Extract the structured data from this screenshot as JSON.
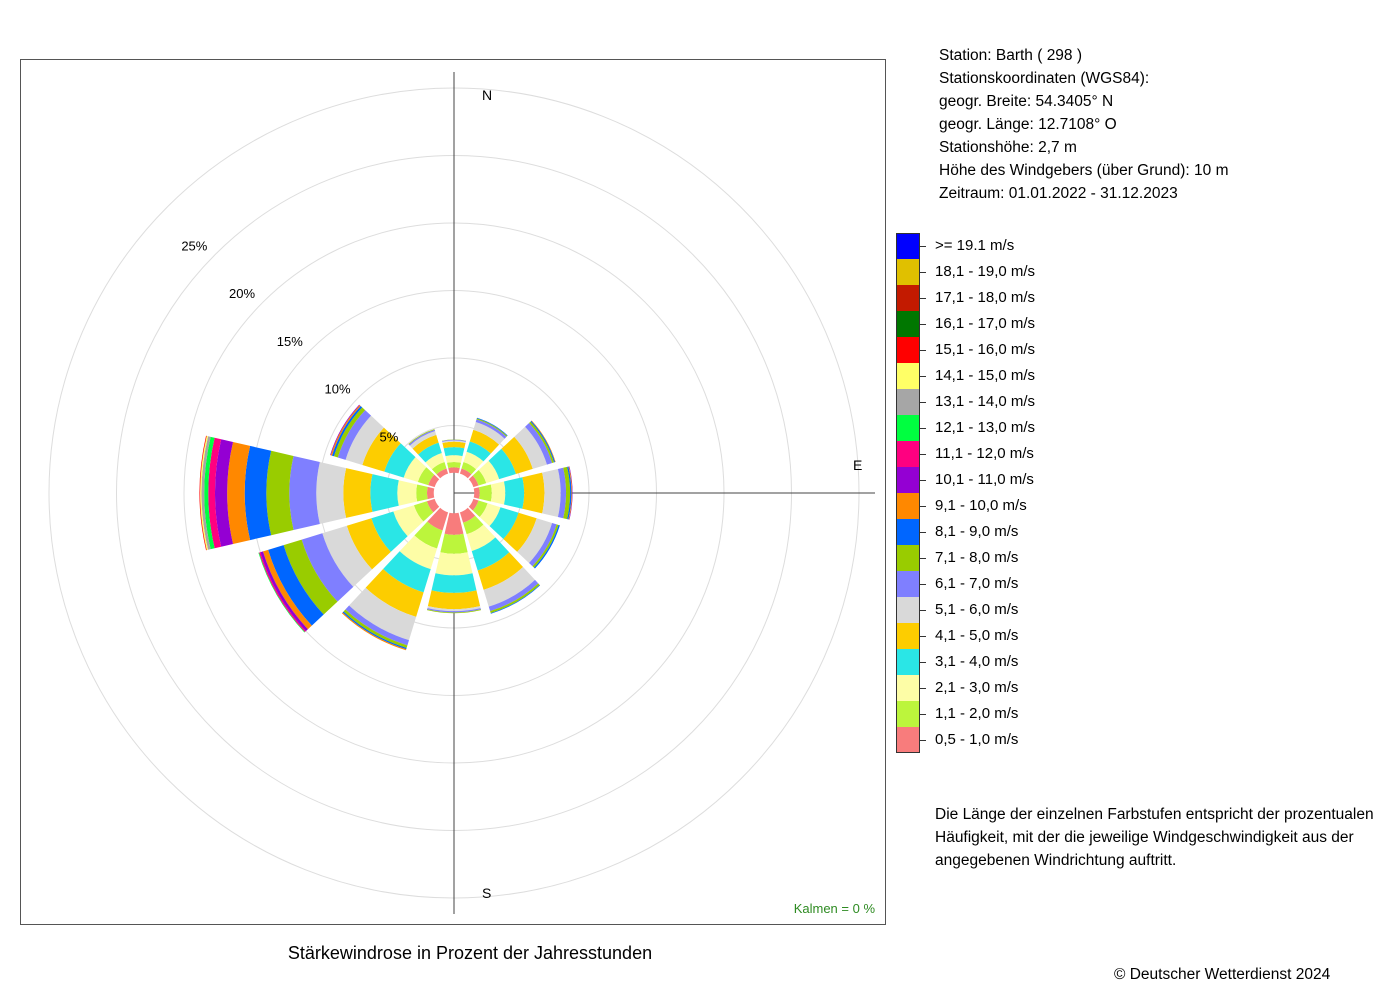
{
  "station": {
    "station_line": "Station:  Barth  ( 298 )",
    "coords_heading": "Stationskoordinaten (WGS84):",
    "latitude": "geogr. Breite: 54.3405° N",
    "longitude": "geogr. Länge: 12.7108° O",
    "elevation": "Stationshöhe: 2,7 m",
    "anemometer_height": "Höhe des Windgebers (über Grund): 10 m",
    "period": "Zeitraum: 01.01.2022 - 31.12.2023"
  },
  "explanation": "Die Länge der einzelnen Farbstufen entspricht der prozentualen Häufigkeit, mit der die jeweilige Windgeschwindigkeit aus der angegebenen Windrichtung auftritt.",
  "calm": "Kalmen  =  0 %",
  "copyright": "© Deutscher Wetterdienst  2024",
  "chart_data": {
    "type": "polar-stacked-bar",
    "title": "Stärkewindrose in Prozent der Jahresstunden",
    "cardinal_labels": [
      "N",
      "E",
      "S"
    ],
    "radial_unit": "%",
    "radial_ticks": [
      5,
      10,
      15,
      20,
      25
    ],
    "radial_tick_labels": [
      "5%",
      "10%",
      "15%",
      "20%",
      "25%"
    ],
    "inner_hole_percent": 1.5,
    "sector_directions_deg": [
      0,
      30,
      60,
      90,
      120,
      150,
      180,
      210,
      240,
      270,
      300,
      330
    ],
    "sector_width_deg": 26,
    "speed_classes": [
      {
        "label": "0,5 - 1,0 m/s",
        "color": "#f87c7c"
      },
      {
        "label": "1,1 - 2,0 m/s",
        "color": "#bcf53c"
      },
      {
        "label": "2,1 - 3,0 m/s",
        "color": "#fdfda6"
      },
      {
        "label": "3,1 - 4,0 m/s",
        "color": "#2ae6e6"
      },
      {
        "label": "4,1 - 5,0 m/s",
        "color": "#fdcd00"
      },
      {
        "label": "5,1 - 6,0 m/s",
        "color": "#d9d9d9"
      },
      {
        "label": "6,1 - 7,0 m/s",
        "color": "#7f7fff"
      },
      {
        "label": "7,1 - 8,0 m/s",
        "color": "#99cc00"
      },
      {
        "label": "8,1 - 9,0 m/s",
        "color": "#0066ff"
      },
      {
        "label": "9,1 - 10,0 m/s",
        "color": "#ff8800"
      },
      {
        "label": "10,1 - 11,0 m/s",
        "color": "#9400d3"
      },
      {
        "label": "11,1 - 12,0 m/s",
        "color": "#ff0080"
      },
      {
        "label": "12,1 - 13,0 m/s",
        "color": "#00ff40"
      },
      {
        "label": "13,1 - 14,0 m/s",
        "color": "#a6a6a6"
      },
      {
        "label": "14,1 - 15,0 m/s",
        "color": "#ffff66"
      },
      {
        "label": "15,1 - 16,0 m/s",
        "color": "#ff0000"
      },
      {
        "label": "16,1 - 17,0 m/s",
        "color": "#007700"
      },
      {
        "label": "17,1 - 18,0 m/s",
        "color": "#c31a00"
      },
      {
        "label": "18,1 - 19,0 m/s",
        "color": "#e0c000"
      },
      {
        "label": ">= 19.1 m/s",
        "color": "#0000ff"
      }
    ],
    "sectors": [
      {
        "dir": 0,
        "values": [
          0.4,
          0.4,
          0.5,
          0.6,
          0.4,
          0.1,
          0.05,
          0.02
        ]
      },
      {
        "dir": 30,
        "values": [
          0.4,
          0.5,
          0.8,
          0.8,
          0.9,
          0.6,
          0.2,
          0.08,
          0.05
        ]
      },
      {
        "dir": 60,
        "values": [
          0.4,
          0.6,
          1.0,
          1.3,
          1.3,
          1.1,
          0.4,
          0.15,
          0.08,
          0.04
        ]
      },
      {
        "dir": 90,
        "values": [
          0.4,
          0.9,
          1.0,
          1.4,
          1.5,
          1.2,
          0.4,
          0.3,
          0.1,
          0.05,
          0.03
        ]
      },
      {
        "dir": 120,
        "values": [
          0.4,
          0.7,
          1.0,
          1.4,
          1.4,
          1.2,
          0.35,
          0.15,
          0.1
        ]
      },
      {
        "dir": 150,
        "values": [
          0.8,
          0.9,
          1.3,
          1.5,
          1.5,
          1.3,
          0.35,
          0.15,
          0.05
        ]
      },
      {
        "dir": 180,
        "values": [
          1.6,
          1.4,
          1.6,
          1.3,
          1.2,
          0.15,
          0.1,
          0.05
        ]
      },
      {
        "dir": 210,
        "values": [
          1.4,
          1.4,
          1.6,
          1.8,
          1.9,
          1.8,
          0.4,
          0.2,
          0.1,
          0.08
        ]
      },
      {
        "dir": 240,
        "values": [
          0.6,
          1.0,
          1.6,
          1.7,
          1.9,
          1.9,
          1.6,
          1.4,
          1.2,
          0.4,
          0.2,
          0.1,
          0.05
        ]
      },
      {
        "dir": 270,
        "values": [
          0.5,
          0.8,
          1.4,
          2.0,
          2.0,
          2.0,
          2.0,
          1.7,
          1.6,
          1.3,
          0.9,
          0.5,
          0.3,
          0.2,
          0.1,
          0.05
        ]
      },
      {
        "dir": 300,
        "values": [
          0.5,
          0.8,
          1.1,
          1.5,
          1.7,
          1.3,
          0.6,
          0.3,
          0.15,
          0.1,
          0.05
        ]
      },
      {
        "dir": 330,
        "values": [
          0.4,
          0.5,
          0.7,
          0.8,
          0.6,
          0.3,
          0.1,
          0.05
        ]
      }
    ]
  }
}
